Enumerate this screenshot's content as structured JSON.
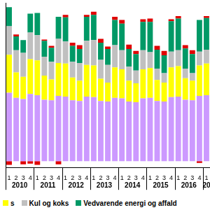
{
  "chart_data": {
    "type": "bar",
    "stacked": true,
    "tick_labels": "x",
    "grid": false,
    "categories": [
      "1",
      "2",
      "3",
      "4",
      "1",
      "2",
      "3",
      "4",
      "1",
      "2",
      "3",
      "4",
      "1",
      "2",
      "3",
      "4",
      "1",
      "2",
      "3",
      "4",
      "1",
      "2",
      "3",
      "4",
      "1",
      "2",
      "3",
      "4",
      "1"
    ],
    "years": [
      "2010",
      "2011",
      "2012",
      "2013",
      "2014",
      "2015",
      "2016",
      "20"
    ],
    "ylim": [
      -10,
      250
    ],
    "series": [
      {
        "name": null,
        "color": "#cc99ff",
        "values": [
          108,
          100,
          98,
          106,
          104,
          97,
          96,
          103,
          102,
          96,
          95,
          102,
          101,
          95,
          94,
          100,
          99,
          94,
          93,
          99,
          100,
          95,
          94,
          101,
          102,
          97,
          96,
          103,
          104
        ]
      },
      {
        "name": "s",
        "color": "#ffff00",
        "values": [
          60,
          40,
          35,
          55,
          55,
          38,
          33,
          52,
          52,
          36,
          32,
          50,
          50,
          35,
          30,
          48,
          46,
          33,
          30,
          46,
          47,
          33,
          30,
          47,
          48,
          34,
          31,
          48,
          50
        ]
      },
      {
        "name": "Kul og koks",
        "color": "#c0c0c0",
        "values": [
          45,
          35,
          38,
          42,
          40,
          30,
          28,
          38,
          35,
          25,
          28,
          38,
          40,
          30,
          28,
          35,
          30,
          22,
          20,
          30,
          25,
          18,
          15,
          25,
          25,
          15,
          12,
          22,
          22
        ]
      },
      {
        "name": "Vedvarende energi og affald",
        "color": "#009966",
        "values": [
          30,
          22,
          20,
          30,
          35,
          25,
          22,
          35,
          38,
          25,
          22,
          38,
          40,
          27,
          25,
          40,
          42,
          28,
          26,
          45,
          48,
          30,
          28,
          48,
          50,
          32,
          30,
          50,
          50
        ]
      },
      {
        "name": null,
        "color": "#e00000",
        "values": [
          -6,
          3,
          -5,
          -4,
          -6,
          2,
          3,
          -5,
          4,
          5,
          6,
          3,
          5,
          6,
          4,
          5,
          6,
          7,
          5,
          4,
          5,
          6,
          7,
          3,
          4,
          5,
          6,
          -3,
          3
        ]
      }
    ]
  }
}
